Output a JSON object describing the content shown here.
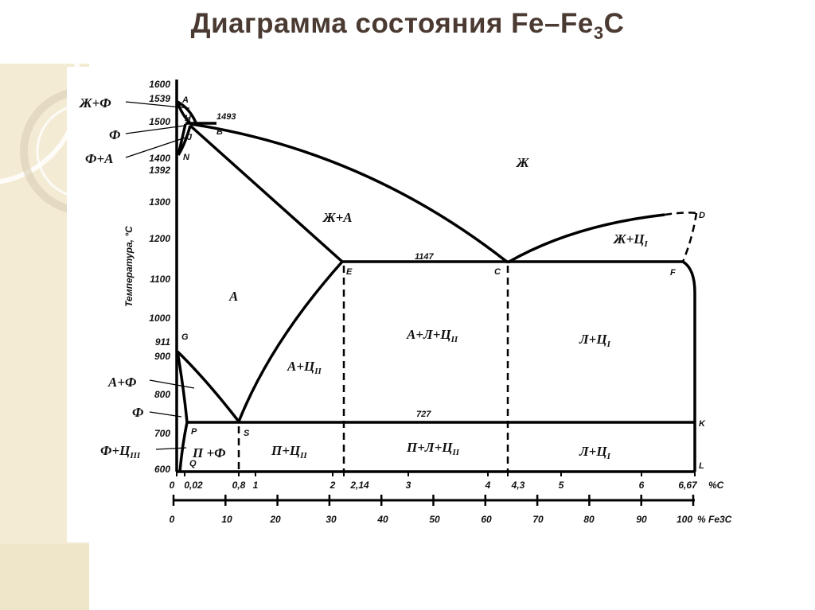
{
  "title": {
    "main": "Диаграмма состояния Fe–Fe",
    "subscript": "3",
    "end": "C"
  },
  "axes": {
    "y_label": "Температура, °С",
    "y_ticks": [
      "1600",
      "1539",
      "1500",
      "1400",
      "1392",
      "1300",
      "1200",
      "1100",
      "1000",
      "911",
      "900",
      "800",
      "700",
      "600"
    ],
    "c_label": "%С",
    "c_ticks": [
      "0",
      "0,02",
      "0,8",
      "1",
      "2",
      "2,14",
      "3",
      "4",
      "4,3",
      "5",
      "6",
      "6,67"
    ],
    "fe3c_label": "% Fe3C",
    "fe3c_ticks": [
      "0",
      "10",
      "20",
      "30",
      "40",
      "50",
      "60",
      "70",
      "80",
      "90",
      "100"
    ]
  },
  "points": {
    "A": "A",
    "H": "H",
    "J": "J",
    "N": "N",
    "B": "B",
    "E": "E",
    "C": "C",
    "D": "D",
    "F": "F",
    "G": "G",
    "P": "P",
    "S": "S",
    "K": "K",
    "Q": "Q",
    "L": "L"
  },
  "temps": {
    "t1493": "1493",
    "t1147": "1147",
    "t727": "727"
  },
  "regions": {
    "L": "Ж",
    "L_A": "Ж+А",
    "L_C1": {
      "main": "Ж+Ц",
      "sub": "I"
    },
    "A": "А",
    "A_Le_C2": {
      "main": "А+Л+Ц",
      "sub": "II"
    },
    "Le_C1_upper": {
      "main": "Л+Ц",
      "sub": "I"
    },
    "A_C2": {
      "main": "А+Ц",
      "sub": "II"
    },
    "P_F": "П +Ф",
    "P_C2": {
      "main": "П+Ц",
      "sub": "II"
    },
    "P_Le_C2": {
      "main": "П+Л+Ц",
      "sub": "II"
    },
    "Le_C1_lower": {
      "main": "Л+Ц",
      "sub": "I"
    }
  },
  "side_labels": {
    "L_F": "Ж+Ф",
    "F_top": "Ф",
    "F_A": "Ф+А",
    "A_F": "А+Ф",
    "F_bottom": "Ф",
    "F_C3": {
      "main": "Ф+Ц",
      "sub": "III"
    }
  }
}
